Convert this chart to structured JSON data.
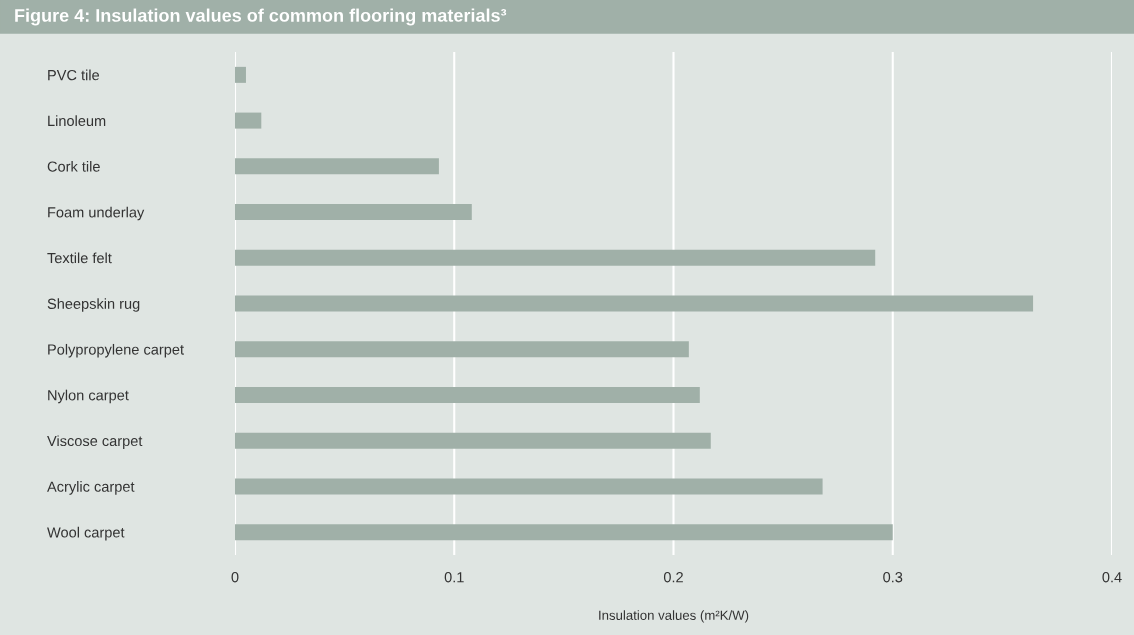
{
  "chart_data": {
    "type": "bar",
    "orientation": "horizontal",
    "title": "Figure 4: Insulation values of common flooring materials³",
    "xlabel": "Insulation values (m²K/W)",
    "categories": [
      "PVC tile",
      "Linoleum",
      "Cork tile",
      "Foam underlay",
      "Textile felt",
      "Sheepskin rug",
      "Polypropylene carpet",
      "Nylon carpet",
      "Viscose carpet",
      "Acrylic carpet",
      "Wool carpet"
    ],
    "values": [
      0.005,
      0.012,
      0.093,
      0.108,
      0.292,
      0.364,
      0.207,
      0.212,
      0.217,
      0.268,
      0.3
    ],
    "color": "#a0b0a8",
    "xlim": [
      0,
      0.4
    ],
    "xticks": [
      0,
      0.1,
      0.2,
      0.3,
      0.4
    ],
    "grid": "x"
  }
}
